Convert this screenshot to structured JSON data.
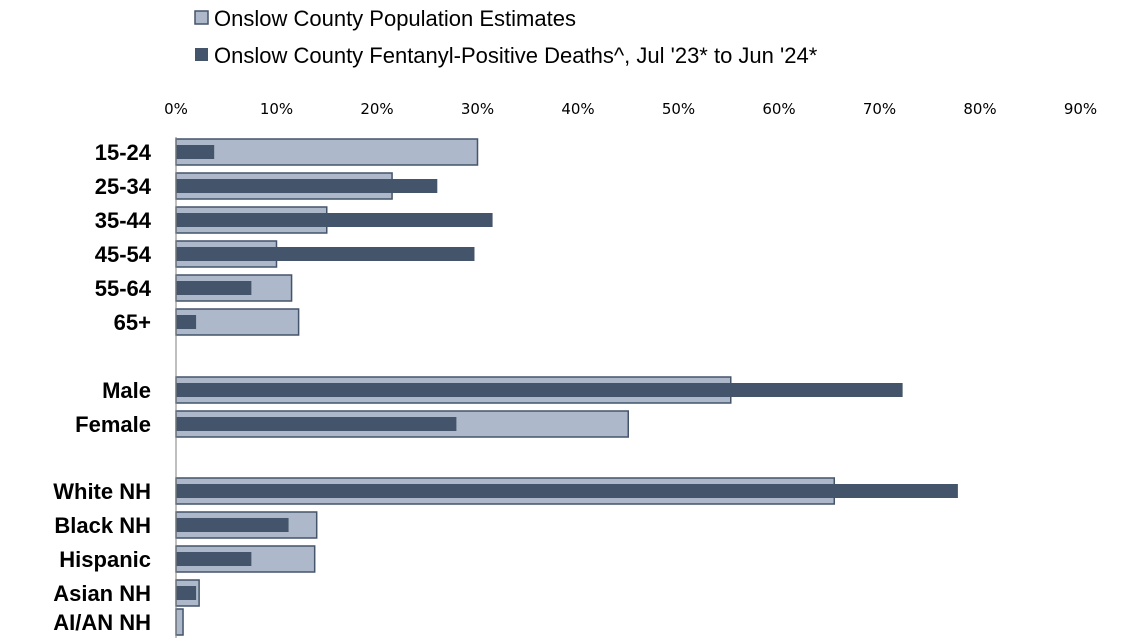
{
  "chart_data": {
    "type": "bar",
    "orientation": "horizontal",
    "categories": [
      "15-24",
      "25-34",
      "35-44",
      "45-54",
      "55-64",
      "65+",
      "Male",
      "Female",
      "White NH",
      "Black NH",
      "Hispanic",
      "Asian NH",
      "AI/AN NH"
    ],
    "series": [
      {
        "name": "Onslow County Population Estimates",
        "values": [
          30,
          21.5,
          15,
          10,
          11.5,
          12.2,
          55.2,
          45,
          65.5,
          14,
          13.8,
          2.3,
          0.7
        ]
      },
      {
        "name": "Onslow County Fentanyl-Positive Deaths^, Jul '23* to Jun '24*",
        "values": [
          3.8,
          26,
          31.5,
          29.7,
          7.5,
          2,
          72.3,
          27.9,
          77.8,
          11.2,
          7.5,
          2,
          0
        ]
      }
    ],
    "x_ticks": [
      "0%",
      "10%",
      "20%",
      "30%",
      "40%",
      "50%",
      "60%",
      "70%",
      "80%",
      "90%"
    ],
    "xlim": [
      0,
      90
    ],
    "unit": "%",
    "grid": false,
    "legend_position": "top",
    "colors": {
      "population": "#adb9ca",
      "deaths": "#44546a",
      "outline": "#44546a"
    }
  }
}
